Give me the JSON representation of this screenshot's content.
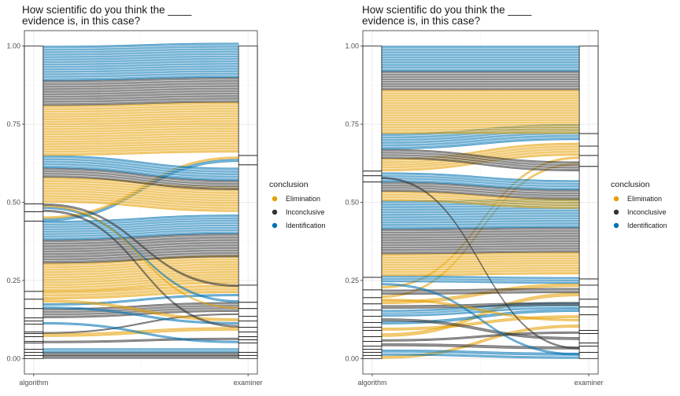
{
  "colors": {
    "Elimination": "#E69F00",
    "Inconclusive": "#333333",
    "Identification": "#0072B2",
    "panel_border": "#333333",
    "grid": "#ebebeb",
    "stratum_stroke": "#1a1a1a"
  },
  "chart_data": [
    {
      "type": "alluvial",
      "title_lines": [
        "How scientific do you think the ____",
        "evidence is, in this case?"
      ],
      "xlabel": "",
      "ylabel": "",
      "categories": [
        "algorithm",
        "examiner"
      ],
      "y_ticks": [
        "0.00",
        "0.25",
        "0.50",
        "0.75",
        "1.00"
      ],
      "ylim": [
        0,
        1
      ],
      "grid": true,
      "legend": {
        "title": "conclusion",
        "position": "right",
        "entries": [
          "Elimination",
          "Inconclusive",
          "Identification"
        ]
      },
      "flows": [
        {
          "from": 0.0,
          "to": 0.0,
          "h": 0.01,
          "c": "Inconclusive"
        },
        {
          "from": 0.01,
          "to": 0.01,
          "h": 0.01,
          "c": "Inconclusive"
        },
        {
          "from": 0.02,
          "to": 0.02,
          "h": 0.012,
          "c": "Identification"
        },
        {
          "from": 0.05,
          "to": 0.06,
          "h": 0.006,
          "c": "Inconclusive"
        },
        {
          "from": 0.07,
          "to": 0.09,
          "h": 0.01,
          "c": "Elimination"
        },
        {
          "from": 0.08,
          "to": 0.14,
          "h": 0.004,
          "c": "Inconclusive"
        },
        {
          "from": 0.11,
          "to": 0.05,
          "h": 0.006,
          "c": "Identification"
        },
        {
          "from": 0.13,
          "to": 0.15,
          "h": 0.03,
          "c": "Inconclusive"
        },
        {
          "from": 0.16,
          "to": 0.11,
          "h": 0.006,
          "c": "Identification"
        },
        {
          "from": 0.17,
          "to": 0.2,
          "h": 0.006,
          "c": "Identification"
        },
        {
          "from": 0.18,
          "to": 0.12,
          "h": 0.008,
          "c": "Elimination"
        },
        {
          "from": 0.19,
          "to": 0.21,
          "h": 0.025,
          "c": "Elimination"
        },
        {
          "from": 0.215,
          "to": 0.24,
          "h": 0.09,
          "c": "Elimination"
        },
        {
          "from": 0.305,
          "to": 0.325,
          "h": 0.075,
          "c": "Inconclusive"
        },
        {
          "from": 0.38,
          "to": 0.4,
          "h": 0.06,
          "c": "Identification"
        },
        {
          "from": 0.44,
          "to": 0.63,
          "h": 0.008,
          "c": "Identification"
        },
        {
          "from": 0.448,
          "to": 0.64,
          "h": 0.006,
          "c": "Elimination"
        },
        {
          "from": 0.47,
          "to": 0.1,
          "h": 0.006,
          "c": "Inconclusive"
        },
        {
          "from": 0.48,
          "to": 0.18,
          "h": 0.006,
          "c": "Identification"
        },
        {
          "from": 0.486,
          "to": 0.16,
          "h": 0.004,
          "c": "Elimination"
        },
        {
          "from": 0.49,
          "to": 0.23,
          "h": 0.006,
          "c": "Inconclusive"
        },
        {
          "from": 0.5,
          "to": 0.47,
          "h": 0.08,
          "c": "Elimination"
        },
        {
          "from": 0.58,
          "to": 0.54,
          "h": 0.03,
          "c": "Inconclusive"
        },
        {
          "from": 0.61,
          "to": 0.57,
          "h": 0.04,
          "c": "Identification"
        },
        {
          "from": 0.65,
          "to": 0.66,
          "h": 0.16,
          "c": "Elimination"
        },
        {
          "from": 0.81,
          "to": 0.82,
          "h": 0.08,
          "c": "Inconclusive"
        },
        {
          "from": 0.89,
          "to": 0.9,
          "h": 0.11,
          "c": "Identification"
        }
      ],
      "strata_left": [
        0.0,
        0.01,
        0.02,
        0.03,
        0.05,
        0.055,
        0.07,
        0.08,
        0.085,
        0.11,
        0.12,
        0.13,
        0.16,
        0.19,
        0.215,
        0.44,
        0.47,
        0.495,
        1.0
      ],
      "strata_right": [
        0.0,
        0.01,
        0.02,
        0.05,
        0.06,
        0.07,
        0.085,
        0.1,
        0.12,
        0.135,
        0.16,
        0.18,
        0.235,
        0.62,
        0.65,
        1.0
      ]
    },
    {
      "type": "alluvial",
      "title_lines": [
        "How scientific do you think the ____",
        "evidence is, in this case?"
      ],
      "xlabel": "",
      "ylabel": "",
      "categories": [
        "algorithm",
        "examiner"
      ],
      "y_ticks": [
        "0.00",
        "0.25",
        "0.50",
        "0.75",
        "1.00"
      ],
      "ylim": [
        0,
        1
      ],
      "grid": true,
      "legend": {
        "title": "conclusion",
        "position": "right",
        "entries": [
          "Elimination",
          "Inconclusive",
          "Identification"
        ]
      },
      "flows": [
        {
          "from": 0.0,
          "to": 0.1,
          "h": 0.008,
          "c": "Elimination"
        },
        {
          "from": 0.01,
          "to": 0.0,
          "h": 0.006,
          "c": "Identification"
        },
        {
          "from": 0.02,
          "to": 0.01,
          "h": 0.008,
          "c": "Identification"
        },
        {
          "from": 0.04,
          "to": 0.03,
          "h": 0.008,
          "c": "Inconclusive"
        },
        {
          "from": 0.055,
          "to": 0.08,
          "h": 0.006,
          "c": "Inconclusive"
        },
        {
          "from": 0.07,
          "to": 0.2,
          "h": 0.01,
          "c": "Elimination"
        },
        {
          "from": 0.09,
          "to": 0.13,
          "h": 0.008,
          "c": "Elimination"
        },
        {
          "from": 0.11,
          "to": 0.15,
          "h": 0.008,
          "c": "Identification"
        },
        {
          "from": 0.12,
          "to": 0.06,
          "h": 0.008,
          "c": "Inconclusive"
        },
        {
          "from": 0.135,
          "to": 0.16,
          "h": 0.02,
          "c": "Identification"
        },
        {
          "from": 0.16,
          "to": 0.17,
          "h": 0.01,
          "c": "Inconclusive"
        },
        {
          "from": 0.175,
          "to": 0.23,
          "h": 0.01,
          "c": "Elimination"
        },
        {
          "from": 0.185,
          "to": 0.12,
          "h": 0.006,
          "c": "Elimination"
        },
        {
          "from": 0.195,
          "to": 0.62,
          "h": 0.006,
          "c": "Elimination"
        },
        {
          "from": 0.205,
          "to": 0.21,
          "h": 0.015,
          "c": "Inconclusive"
        },
        {
          "from": 0.225,
          "to": 0.64,
          "h": 0.006,
          "c": "Elimination"
        },
        {
          "from": 0.235,
          "to": 0.01,
          "h": 0.006,
          "c": "Identification"
        },
        {
          "from": 0.245,
          "to": 0.24,
          "h": 0.02,
          "c": "Identification"
        },
        {
          "from": 0.265,
          "to": 0.27,
          "h": 0.07,
          "c": "Elimination"
        },
        {
          "from": 0.335,
          "to": 0.34,
          "h": 0.08,
          "c": "Inconclusive"
        },
        {
          "from": 0.415,
          "to": 0.42,
          "h": 0.09,
          "c": "Identification"
        },
        {
          "from": 0.505,
          "to": 0.48,
          "h": 0.03,
          "c": "Elimination"
        },
        {
          "from": 0.535,
          "to": 0.51,
          "h": 0.03,
          "c": "Inconclusive"
        },
        {
          "from": 0.565,
          "to": 0.54,
          "h": 0.03,
          "c": "Identification"
        },
        {
          "from": 0.575,
          "to": 0.03,
          "h": 0.005,
          "c": "Inconclusive"
        },
        {
          "from": 0.6,
          "to": 0.65,
          "h": 0.04,
          "c": "Elimination"
        },
        {
          "from": 0.64,
          "to": 0.6,
          "h": 0.03,
          "c": "Inconclusive"
        },
        {
          "from": 0.67,
          "to": 0.7,
          "h": 0.05,
          "c": "Identification"
        },
        {
          "from": 0.72,
          "to": 0.72,
          "h": 0.14,
          "c": "Elimination"
        },
        {
          "from": 0.86,
          "to": 0.86,
          "h": 0.06,
          "c": "Inconclusive"
        },
        {
          "from": 0.92,
          "to": 0.92,
          "h": 0.08,
          "c": "Identification"
        }
      ],
      "strata_left": [
        0.0,
        0.01,
        0.02,
        0.03,
        0.04,
        0.055,
        0.07,
        0.09,
        0.1,
        0.115,
        0.135,
        0.155,
        0.175,
        0.195,
        0.22,
        0.26,
        0.565,
        0.585,
        0.6,
        1.0
      ],
      "strata_right": [
        0.0,
        0.02,
        0.04,
        0.05,
        0.08,
        0.09,
        0.14,
        0.165,
        0.19,
        0.235,
        0.255,
        0.615,
        0.65,
        0.68,
        0.72,
        1.0
      ]
    }
  ]
}
